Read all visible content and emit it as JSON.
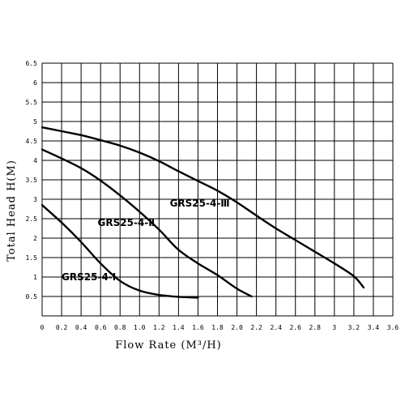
{
  "chart_data": {
    "type": "line",
    "title": "",
    "xlabel": "Flow Rate (M³/H)",
    "ylabel": "Total Head H(M)",
    "xlim": [
      0,
      3.6
    ],
    "ylim": [
      0,
      6.5
    ],
    "x_ticks": [
      "0",
      "0.2",
      "0.4",
      "0.6",
      "0.8",
      "1.0",
      "1.2",
      "1.4",
      "1.6",
      "1.8",
      "2.0",
      "2.2",
      "2.4",
      "2.6",
      "2.8",
      "3",
      "3.2",
      "3.4",
      "3.6"
    ],
    "y_ticks": [
      "0.5",
      "1",
      "1.5",
      "2",
      "2.5",
      "3",
      "3.5",
      "4",
      "4.5",
      "5",
      "5.5",
      "6",
      "6.5"
    ],
    "grid": true,
    "series": [
      {
        "name": "GRS25-4-Ⅰ",
        "x": [
          0,
          0.2,
          0.4,
          0.6,
          0.8,
          1.0,
          1.2,
          1.4,
          1.6
        ],
        "y": [
          2.85,
          2.4,
          1.9,
          1.35,
          0.9,
          0.65,
          0.54,
          0.49,
          0.47
        ]
      },
      {
        "name": "GRS25-4-Ⅱ",
        "x": [
          0,
          0.2,
          0.4,
          0.6,
          0.8,
          1.0,
          1.2,
          1.4,
          1.6,
          1.8,
          2.0,
          2.15
        ],
        "y": [
          4.28,
          4.05,
          3.8,
          3.48,
          3.1,
          2.68,
          2.22,
          1.7,
          1.35,
          1.05,
          0.7,
          0.5
        ]
      },
      {
        "name": "GRS25-4-Ⅲ",
        "x": [
          0,
          0.2,
          0.4,
          0.6,
          0.8,
          1.0,
          1.2,
          1.4,
          1.6,
          1.8,
          2.0,
          2.2,
          2.4,
          2.6,
          2.8,
          3.0,
          3.2,
          3.3
        ],
        "y": [
          4.85,
          4.75,
          4.65,
          4.52,
          4.38,
          4.2,
          3.98,
          3.72,
          3.47,
          3.22,
          2.92,
          2.58,
          2.25,
          1.95,
          1.65,
          1.35,
          1.02,
          0.73
        ]
      }
    ]
  }
}
